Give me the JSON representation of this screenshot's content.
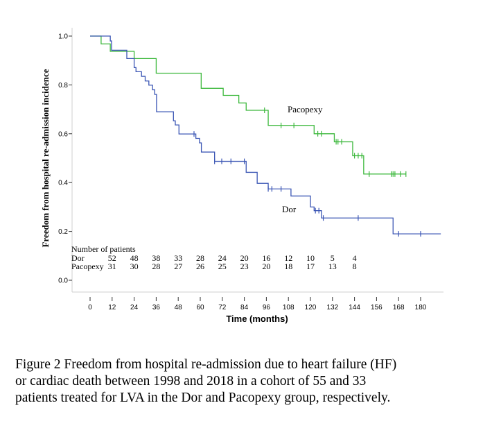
{
  "chart_data": {
    "type": "line",
    "subtype": "kaplan-meier step",
    "xlabel": "Time (months)",
    "ylabel": "Freedom from hospital re-admission incidence",
    "xlim": [
      0,
      190
    ],
    "ylim": [
      0.0,
      1.0
    ],
    "x_ticks": [
      0,
      12,
      24,
      36,
      48,
      60,
      72,
      84,
      96,
      108,
      120,
      132,
      144,
      156,
      168,
      180
    ],
    "y_ticks": [
      "0.0",
      "0.2",
      "0.4",
      "0.6",
      "0.8",
      "1.0"
    ],
    "grid": false,
    "series": [
      {
        "name": "Pacopexy",
        "color": "#3cb83c",
        "steps": [
          [
            0,
            1.0
          ],
          [
            6,
            0.968
          ],
          [
            11,
            0.9375
          ],
          [
            24,
            0.908
          ],
          [
            36,
            0.848
          ],
          [
            60.5,
            0.786
          ],
          [
            72.5,
            0.757
          ],
          [
            81,
            0.726
          ],
          [
            85,
            0.696
          ],
          [
            97,
            0.634
          ],
          [
            122,
            0.6
          ],
          [
            133,
            0.567
          ],
          [
            143,
            0.51
          ],
          [
            149,
            0.435
          ],
          [
            172,
            0.435
          ]
        ],
        "censored": [
          95,
          104,
          111,
          124,
          126,
          134,
          135,
          137,
          144,
          146,
          148,
          152,
          164,
          165,
          166,
          169,
          172
        ]
      },
      {
        "name": "Dor",
        "color": "#3a55b4",
        "steps": [
          [
            0,
            1.0
          ],
          [
            11,
            0.98
          ],
          [
            11.7,
            0.942
          ],
          [
            20,
            0.908
          ],
          [
            24,
            0.871
          ],
          [
            25,
            0.854
          ],
          [
            28,
            0.835
          ],
          [
            30,
            0.816
          ],
          [
            32,
            0.799
          ],
          [
            34,
            0.78
          ],
          [
            35.2,
            0.761
          ],
          [
            36.2,
            0.69
          ],
          [
            45.4,
            0.653
          ],
          [
            46.4,
            0.636
          ],
          [
            48.4,
            0.599
          ],
          [
            57.6,
            0.581
          ],
          [
            59.6,
            0.5625
          ],
          [
            60.6,
            0.525
          ],
          [
            67.8,
            0.487
          ],
          [
            85,
            0.442
          ],
          [
            91,
            0.397
          ],
          [
            97,
            0.374
          ],
          [
            109.4,
            0.345
          ],
          [
            120,
            0.3
          ],
          [
            122,
            0.285
          ],
          [
            126,
            0.255
          ],
          [
            165,
            0.19
          ],
          [
            191,
            0.19
          ]
        ],
        "censored": [
          56.6,
          67.8,
          71.7,
          76.7,
          84,
          97,
          99,
          104,
          122.7,
          124.6,
          127,
          146,
          168,
          180
        ]
      }
    ],
    "risk_table": {
      "title": "Number of patients",
      "months": [
        12,
        24,
        36,
        48,
        60,
        72,
        84,
        96,
        108,
        120,
        132,
        144
      ],
      "rows": [
        {
          "label": "Dor",
          "values": [
            "52",
            "48",
            "38",
            "33",
            "28",
            "24",
            "20",
            "16",
            "12",
            "10",
            "5",
            "4"
          ]
        },
        {
          "label": "Pacopexy",
          "values": [
            "31",
            "30",
            "28",
            "27",
            "26",
            "25",
            "23",
            "20",
            "18",
            "17",
            "13",
            "8"
          ]
        }
      ]
    }
  },
  "caption": [
    "Figure 2 Freedom from hospital re-admission due to heart failure (HF)",
    "or cardiac death between 1998 and 2018 in a cohort of 55 and 33",
    "patients treated for LVA in the Dor and Pacopexy group, respectively."
  ]
}
